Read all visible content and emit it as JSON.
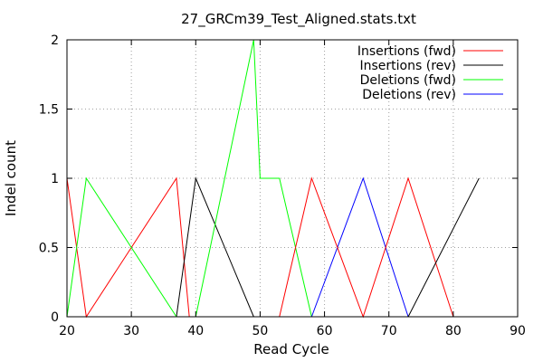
{
  "chart_data": {
    "type": "line",
    "title": "27_GRCm39_Test_Aligned.stats.txt",
    "xlabel": "Read Cycle",
    "ylabel": "Indel count",
    "xlim": [
      20,
      90
    ],
    "ylim": [
      0,
      2
    ],
    "xticks": [
      20,
      30,
      40,
      50,
      60,
      70,
      80,
      90
    ],
    "yticks": [
      0,
      0.5,
      1,
      1.5,
      2
    ],
    "ytick_labels": [
      "0",
      "0.5",
      "1",
      "1.5",
      "2"
    ],
    "grid": true,
    "legend_position": "top-right",
    "series": [
      {
        "name": "Insertions (fwd)",
        "color": "#ff0000",
        "points": [
          [
            20,
            1
          ],
          [
            23,
            0
          ],
          [
            37,
            1
          ],
          [
            39,
            0
          ]
        ]
      },
      {
        "name": "Insertions (rev)",
        "color": "#000000",
        "points": [
          [
            37,
            0
          ],
          [
            40,
            1
          ],
          [
            49,
            0
          ]
        ]
      },
      {
        "name": "Deletions (fwd)",
        "color": "#00ff00",
        "points": [
          [
            20,
            0
          ],
          [
            23,
            1
          ],
          [
            37,
            0
          ],
          [
            40,
            0
          ],
          [
            49,
            2
          ],
          [
            50,
            1
          ],
          [
            53,
            1
          ],
          [
            58,
            0
          ]
        ]
      },
      {
        "name": "Deletions (rev)",
        "color": "#0000ff",
        "points": [
          [
            58,
            0
          ],
          [
            66,
            1
          ],
          [
            73,
            0
          ]
        ]
      },
      {
        "name": "",
        "color": "#ff0000",
        "points": [
          [
            53,
            0
          ],
          [
            58,
            1
          ],
          [
            66,
            0
          ],
          [
            73,
            1
          ],
          [
            80,
            0
          ]
        ]
      },
      {
        "name": "",
        "color": "#000000",
        "points": [
          [
            73,
            0
          ],
          [
            84,
            1
          ]
        ]
      }
    ]
  }
}
